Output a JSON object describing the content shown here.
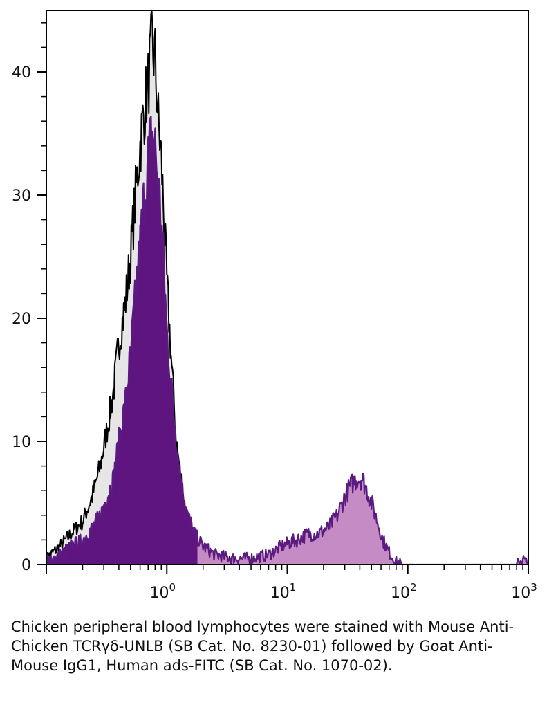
{
  "chart_data": {
    "type": "area",
    "title": "",
    "xlabel": "",
    "ylabel": "",
    "x_scale": "log",
    "xlim": [
      0.1,
      1000
    ],
    "ylim": [
      0,
      45
    ],
    "grid": false,
    "legend": "none",
    "x_ticks": [
      {
        "value": 1,
        "base": "10",
        "exp": "0"
      },
      {
        "value": 10,
        "base": "10",
        "exp": "1"
      },
      {
        "value": 100,
        "base": "10",
        "exp": "2"
      },
      {
        "value": 1000,
        "base": "10",
        "exp": "3"
      }
    ],
    "y_ticks": [
      {
        "value": 0,
        "label": "0"
      },
      {
        "value": 10,
        "label": "10"
      },
      {
        "value": 20,
        "label": "20"
      },
      {
        "value": 30,
        "label": "30"
      },
      {
        "value": 40,
        "label": "40"
      }
    ],
    "series": [
      {
        "role": "control",
        "color": "#000000",
        "fill": "#e6e6e6",
        "x": [
          0.1,
          0.13,
          0.16,
          0.2,
          0.24,
          0.28,
          0.32,
          0.36,
          0.4,
          0.45,
          0.5,
          0.55,
          0.6,
          0.65,
          0.7,
          0.75,
          0.8,
          0.85,
          0.9,
          0.95,
          1.0,
          1.1,
          1.2,
          1.35,
          1.5,
          1.7,
          2.0,
          2.5,
          3.5,
          5,
          10,
          100,
          1000
        ],
        "y": [
          0.5,
          1.5,
          2.5,
          3.5,
          5.5,
          8,
          11,
          14,
          18,
          21,
          25,
          30,
          34,
          37,
          39,
          42,
          41,
          36,
          33,
          28,
          23,
          16,
          10,
          6,
          3,
          1.5,
          0.8,
          0.4,
          0.2,
          0.1,
          0.05,
          0,
          0
        ]
      },
      {
        "role": "stained",
        "color": "#5a1a80",
        "fill": "#5e1580",
        "x": [
          0.1,
          0.13,
          0.16,
          0.2,
          0.24,
          0.28,
          0.32,
          0.36,
          0.4,
          0.45,
          0.5,
          0.55,
          0.6,
          0.65,
          0.7,
          0.75,
          0.8,
          0.85,
          0.9,
          0.95,
          1.0,
          1.1,
          1.2,
          1.35,
          1.5,
          1.7,
          2.0,
          2.5,
          3.5,
          5,
          7,
          9,
          12,
          15,
          18,
          22,
          26,
          30,
          34,
          38,
          42,
          46,
          50,
          56,
          62,
          70,
          78,
          90,
          100,
          300,
          800,
          900,
          1000
        ],
        "y": [
          0.3,
          0.8,
          1.5,
          2,
          3,
          4,
          5.5,
          7,
          10,
          13,
          17,
          22,
          26,
          30,
          33,
          35,
          34,
          31,
          28,
          24,
          19,
          14,
          10,
          6,
          4,
          2.5,
          1.5,
          0.8,
          0.5,
          0.5,
          0.8,
          1.5,
          2,
          2.5,
          2.5,
          3,
          4,
          5.5,
          6.5,
          7,
          7,
          6,
          5,
          3.5,
          2,
          1,
          0.3,
          0,
          0,
          0,
          0,
          0.5,
          0
        ]
      }
    ]
  },
  "caption": "Chicken peripheral blood lymphocytes were stained with Mouse Anti-Chicken TCRγδ-UNLB (SB Cat. No. 8230-01) followed by Goat Anti-Mouse IgG1, Human ads-FITC (SB Cat. No. 1070-02).",
  "colors": {
    "control_line": "#000000",
    "control_fill": "#e6e6e6",
    "stained_line": "#5a1a80",
    "stained_fill_main": "#5e1580",
    "stained_fill_secondary": "#c48bc4",
    "axis": "#000000"
  }
}
